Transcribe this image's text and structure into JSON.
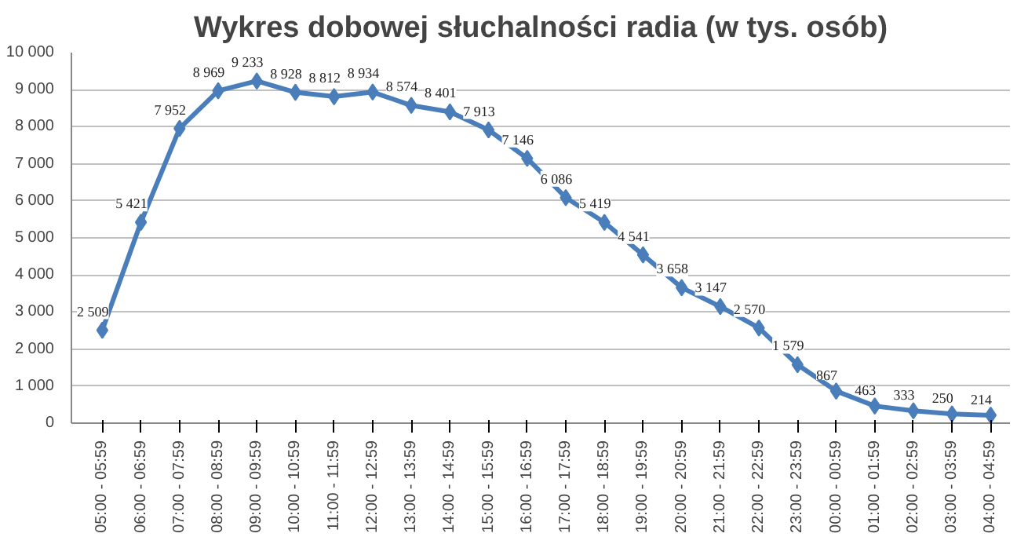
{
  "chart_data": {
    "type": "line",
    "title": "Wykres dobowej słuchalności radia (w tys. osób)",
    "categories": [
      "05:00 - 05:59",
      "06:00 - 06:59",
      "07:00 - 07:59",
      "08:00 - 08:59",
      "09:00 - 09:59",
      "10:00 - 10:59",
      "11:00 - 11:59",
      "12:00 - 12:59",
      "13:00 - 13:59",
      "14:00 - 14:59",
      "15:00 - 15:59",
      "16:00 - 16:59",
      "17:00 - 17:59",
      "18:00 - 18:59",
      "19:00 - 19:59",
      "20:00 - 20:59",
      "21:00 - 21:59",
      "22:00 - 22:59",
      "23:00 - 23:59",
      "00:00 - 00:59",
      "01:00 - 01:59",
      "02:00 - 02:59",
      "03:00 - 03:59",
      "04:00 - 04:59"
    ],
    "series": [
      {
        "color": "#4a7ebb",
        "values": [
          2509,
          5421,
          7952,
          8969,
          9233,
          8928,
          8812,
          8934,
          8574,
          8401,
          7913,
          7146,
          6086,
          5419,
          4541,
          3658,
          3147,
          2570,
          1579,
          867,
          463,
          333,
          250,
          214
        ],
        "value_labels": [
          "2 509",
          "5 421",
          "7 952",
          "8 969",
          "9 233",
          "8 928",
          "8 812",
          "8 934",
          "8 574",
          "8 401",
          "7 913",
          "7 146",
          "6 086",
          "5 419",
          "4 541",
          "3 658",
          "3 147",
          "2 570",
          "1 579",
          "867",
          "463",
          "333",
          "250",
          "214"
        ]
      }
    ],
    "ylim": [
      0,
      10000
    ],
    "yticks": [
      0,
      {
        "value": 1000,
        "label": "1 000"
      },
      {
        "value": 2000,
        "label": "2 000"
      },
      {
        "value": 3000,
        "label": "3 000"
      },
      {
        "value": 4000,
        "label": "4 000"
      },
      {
        "value": 5000,
        "label": "5 000"
      },
      {
        "value": 6000,
        "label": "6 000"
      },
      {
        "value": 7000,
        "label": "7 000"
      },
      {
        "value": 8000,
        "label": "8 000"
      },
      {
        "value": 9000,
        "label": "9 000"
      },
      {
        "value": 10000,
        "label": "10 000"
      }
    ],
    "grid": "y",
    "marker": "diamond",
    "line_style": "solid"
  }
}
